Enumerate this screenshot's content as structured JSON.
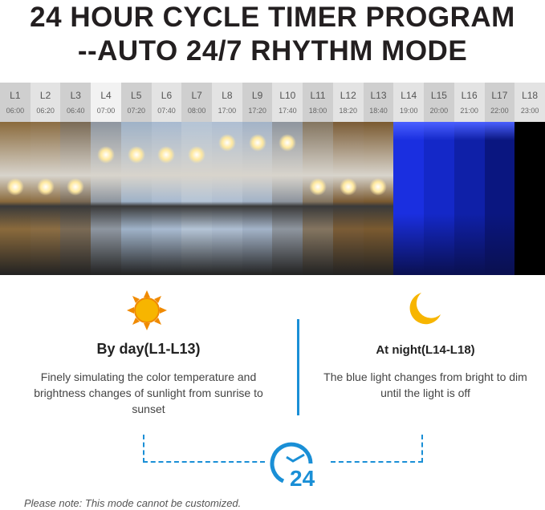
{
  "title": {
    "line1": "24 HOUR CYCLE TIMER PROGRAM",
    "line2": "--AUTO 24/7 RHYTHM MODE"
  },
  "levels": [
    {
      "label": "L1",
      "time": "06:00",
      "color": "#8a6a3c"
    },
    {
      "label": "L2",
      "time": "06:20",
      "color": "#8b6d43"
    },
    {
      "label": "L3",
      "time": "06:40",
      "color": "#7a6a55"
    },
    {
      "label": "L4",
      "time": "07:00",
      "color": "#8e96a0"
    },
    {
      "label": "L5",
      "time": "07:20",
      "color": "#9fb2c8"
    },
    {
      "label": "L6",
      "time": "07:40",
      "color": "#a8bad0"
    },
    {
      "label": "L7",
      "time": "08:00",
      "color": "#b4c4d6"
    },
    {
      "label": "L8",
      "time": "17:00",
      "color": "#aebed2"
    },
    {
      "label": "L9",
      "time": "17:20",
      "color": "#a3b3c8"
    },
    {
      "label": "L10",
      "time": "17:40",
      "color": "#8e959e"
    },
    {
      "label": "L11",
      "time": "18:00",
      "color": "#847560"
    },
    {
      "label": "L12",
      "time": "18:20",
      "color": "#7b5c36"
    },
    {
      "label": "L13",
      "time": "18:40",
      "color": "#7a5a30"
    },
    {
      "label": "L14",
      "time": "19:00",
      "color": "#1a2fe0"
    },
    {
      "label": "L15",
      "time": "20:00",
      "color": "#1428c8"
    },
    {
      "label": "L16",
      "time": "21:00",
      "color": "#0f20a8"
    },
    {
      "label": "L17",
      "time": "22:00",
      "color": "#0a1680"
    },
    {
      "label": "L18",
      "time": "23:00",
      "color": "#000000"
    }
  ],
  "day": {
    "icon": "sun-icon",
    "heading": "By day(L1-L13)",
    "text": "Finely simulating the color temperature and brightness changes of sunlight from sunrise to sunset"
  },
  "night": {
    "icon": "moon-icon",
    "heading": "At night(L14-L18)",
    "text": "The blue light changes from bright to dim until the light is off"
  },
  "clock": {
    "icon": "clock-24-icon",
    "label": "24"
  },
  "note": "Please note: This mode cannot be customized.",
  "accent": "#1a8fd6"
}
